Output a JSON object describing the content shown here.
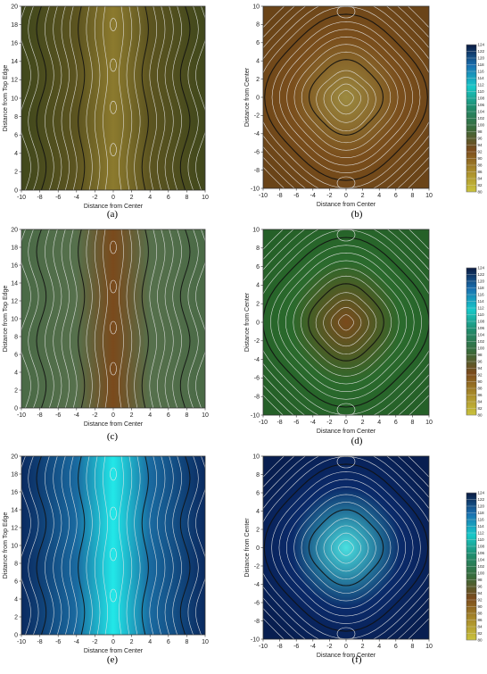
{
  "colorbar": {
    "ticks": [
      80,
      82,
      84,
      86,
      88,
      90,
      92,
      94,
      96,
      98,
      100,
      102,
      104,
      106,
      108,
      110,
      112,
      114,
      116,
      118,
      120,
      122,
      124
    ],
    "stops": [
      "#c9c23c",
      "#a88a2a",
      "#7a4a1c",
      "#3a6a3a",
      "#208a6a",
      "#18c8c8",
      "#1a70b0",
      "#0a1a40"
    ]
  },
  "chart_data": [
    {
      "type": "heatmap",
      "panel_label": "(a)",
      "xlabel": "Distance from Center",
      "ylabel": "Distance from Top Edge",
      "xlim": [
        -10,
        10
      ],
      "ylim": [
        0,
        20
      ],
      "xticks": [
        "-10",
        "-8",
        "-6",
        "-4",
        "-2",
        "0",
        "2",
        "4",
        "6",
        "8",
        "10"
      ],
      "yticks": [
        "0",
        "2",
        "4",
        "6",
        "8",
        "10",
        "12",
        "14",
        "16",
        "18",
        "20"
      ],
      "colors": {
        "base": "#5c5420",
        "center": "#8c7a2e",
        "edge": "#40481c"
      }
    },
    {
      "type": "heatmap",
      "panel_label": "(b)",
      "xlabel": "Distance from Center",
      "ylabel": "Distance from Center",
      "xlim": [
        -10,
        10
      ],
      "ylim": [
        -10,
        10
      ],
      "xticks": [
        "-10",
        "-8",
        "-6",
        "-4",
        "-2",
        "0",
        "2",
        "4",
        "6",
        "8",
        "10"
      ],
      "yticks": [
        "-10",
        "-8",
        "-6",
        "-4",
        "-2",
        "0",
        "2",
        "4",
        "6",
        "8",
        "10"
      ],
      "colors": {
        "base": "#7a4e1c",
        "center": "#9c8a40",
        "edge": "#6a4418"
      }
    },
    {
      "type": "heatmap",
      "panel_label": "(c)",
      "xlabel": "Distance from Center",
      "ylabel": "Distance from Top Edge",
      "xlim": [
        -10,
        10
      ],
      "ylim": [
        0,
        20
      ],
      "xticks": [
        "-10",
        "-8",
        "-6",
        "-4",
        "-2",
        "0",
        "2",
        "4",
        "6",
        "8",
        "10"
      ],
      "yticks": [
        "0",
        "2",
        "4",
        "6",
        "8",
        "10",
        "12",
        "14",
        "16",
        "18",
        "20"
      ],
      "colors": {
        "base": "#56704c",
        "center": "#7a4a1c",
        "edge": "#4a6a46"
      }
    },
    {
      "type": "heatmap",
      "panel_label": "(d)",
      "xlabel": "Distance from Center",
      "ylabel": "Distance from Center",
      "xlim": [
        -10,
        10
      ],
      "ylim": [
        -10,
        10
      ],
      "xticks": [
        "-10",
        "-8",
        "-6",
        "-4",
        "-2",
        "0",
        "2",
        "4",
        "6",
        "8",
        "10"
      ],
      "yticks": [
        "-10",
        "-8",
        "-6",
        "-4",
        "-2",
        "0",
        "2",
        "4",
        "6",
        "8",
        "10"
      ],
      "colors": {
        "base": "#2a6a2c",
        "center": "#7a4a1c",
        "edge": "#256028"
      }
    },
    {
      "type": "heatmap",
      "panel_label": "(e)",
      "xlabel": "Distance from Center",
      "ylabel": "Distance from Top Edge",
      "xlim": [
        -10,
        10
      ],
      "ylim": [
        0,
        20
      ],
      "xticks": [
        "-10",
        "-8",
        "-6",
        "-4",
        "-2",
        "0",
        "2",
        "4",
        "6",
        "8",
        "10"
      ],
      "yticks": [
        "0",
        "2",
        "4",
        "6",
        "8",
        "10",
        "12",
        "14",
        "16",
        "18",
        "20"
      ],
      "colors": {
        "base": "#1a6aa0",
        "center": "#22e8e8",
        "edge": "#0a2a60"
      }
    },
    {
      "type": "heatmap",
      "panel_label": "(f)",
      "xlabel": "Distance from Center",
      "ylabel": "Distance from Center",
      "xlim": [
        -10,
        10
      ],
      "ylim": [
        -10,
        10
      ],
      "xticks": [
        "-10",
        "-8",
        "-6",
        "-4",
        "-2",
        "0",
        "2",
        "4",
        "6",
        "8",
        "10"
      ],
      "yticks": [
        "-10",
        "-8",
        "-6",
        "-4",
        "-2",
        "0",
        "2",
        "4",
        "6",
        "8",
        "10"
      ],
      "colors": {
        "base": "#0a2a6a",
        "center": "#4ae0e0",
        "edge": "#081e50"
      }
    }
  ]
}
